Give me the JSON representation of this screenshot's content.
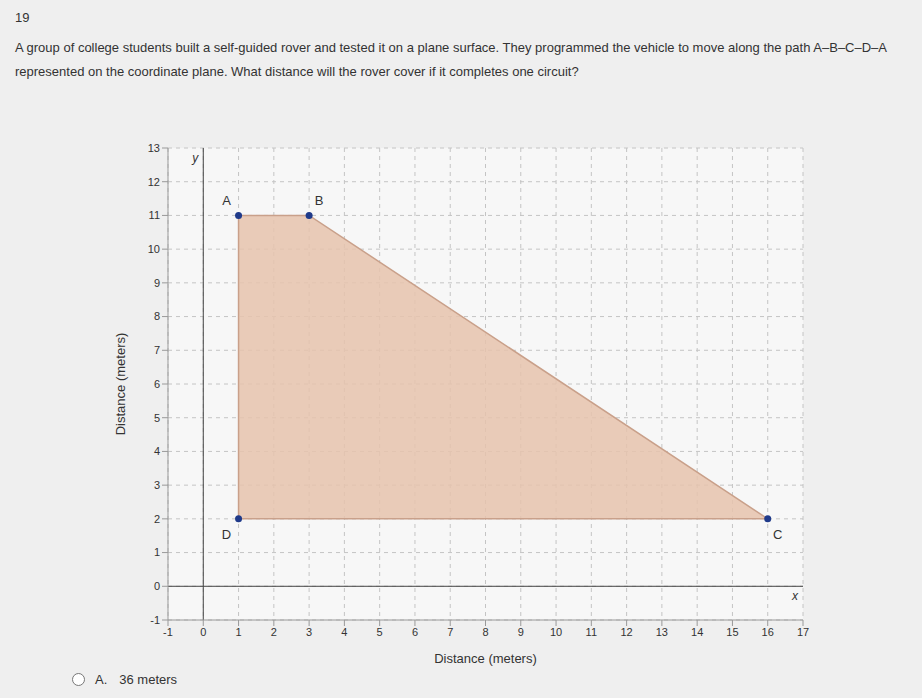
{
  "question": {
    "number": "19",
    "text": "A group of college students built a self-guided rover and tested it on a plane surface. They programmed the vehicle to move along the path A–B–C–D–A represented on the coordinate plane. What distance will the rover cover if it completes one circuit?",
    "option": {
      "letter": "A.",
      "text": "36 meters"
    }
  },
  "chart_data": {
    "type": "polygon",
    "points": [
      {
        "label": "A",
        "x": 1,
        "y": 11
      },
      {
        "label": "B",
        "x": 3,
        "y": 11
      },
      {
        "label": "C",
        "x": 16,
        "y": 2
      },
      {
        "label": "D",
        "x": 1,
        "y": 2
      }
    ],
    "path": [
      "A",
      "B",
      "C",
      "D",
      "A"
    ],
    "x_label": "Distance (meters)",
    "y_label": "Distance (meters)",
    "x_axis_name": "x",
    "y_axis_name": "y",
    "xlim": [
      -1,
      17
    ],
    "ylim": [
      -1,
      13
    ],
    "xticks": [
      -1,
      0,
      1,
      2,
      3,
      4,
      5,
      6,
      7,
      8,
      9,
      10,
      11,
      12,
      13,
      14,
      15,
      16,
      17
    ],
    "yticks": [
      -1,
      0,
      1,
      2,
      3,
      4,
      5,
      6,
      7,
      8,
      9,
      10,
      11,
      12,
      13
    ],
    "grid": true,
    "color": "#e6c3ad",
    "marker": "circle"
  }
}
